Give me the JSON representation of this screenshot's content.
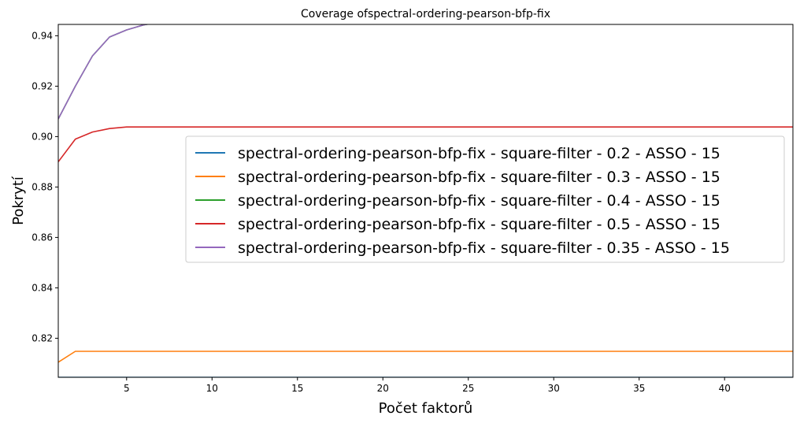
{
  "chart_data": {
    "type": "line",
    "title": "Coverage ofspectral-ordering-pearson-bfp-fix",
    "xlabel": "Počet faktorů",
    "ylabel": "Pokrytí",
    "xlim": [
      1,
      44
    ],
    "ylim": [
      0.8045,
      0.9445
    ],
    "xticks": [
      5,
      10,
      15,
      20,
      25,
      30,
      35,
      40
    ],
    "yticks": [
      0.82,
      0.84,
      0.86,
      0.88,
      0.9,
      0.92,
      0.94
    ],
    "ytick_labels": [
      "0.82",
      "0.84",
      "0.86",
      "0.88",
      "0.90",
      "0.92",
      "0.94"
    ],
    "grid": false,
    "legend_position": "center-right",
    "x": [
      1,
      2,
      3,
      4,
      5,
      6,
      7,
      8,
      9,
      10,
      11,
      12,
      13,
      14,
      15,
      16,
      17,
      18,
      19,
      20,
      21,
      22,
      23,
      24,
      25,
      26,
      27,
      28,
      29,
      30,
      31,
      32,
      33,
      34,
      35,
      36,
      37,
      38,
      39,
      40,
      41,
      42,
      43,
      44
    ],
    "series": [
      {
        "name": "spectral-ordering-pearson-bfp-fix - square-filter - 0.2 - ASSO - 15",
        "color": "#1f77b4",
        "values": [
          0.8045,
          0.8045,
          0.8045,
          0.8045,
          0.8045,
          0.8045,
          0.8045,
          0.8045,
          0.8045,
          0.8045,
          0.8045,
          0.8045,
          0.8045,
          0.8045,
          0.8045,
          0.8045,
          0.8045,
          0.8045,
          0.8045,
          0.8045,
          0.8045,
          0.8045,
          0.8045,
          0.8045,
          0.8045,
          0.8045,
          0.8045,
          0.8045,
          0.8045,
          0.8045,
          0.8045,
          0.8045,
          0.8045,
          0.8045,
          0.8045,
          0.8045,
          0.8045,
          0.8045,
          0.8045,
          0.8045,
          0.8045,
          0.8045,
          0.8045,
          0.8045
        ]
      },
      {
        "name": "spectral-ordering-pearson-bfp-fix - square-filter - 0.3 - ASSO - 15",
        "color": "#ff7f0e",
        "values": [
          0.8105,
          0.8148,
          0.8148,
          0.8148,
          0.8148,
          0.8148,
          0.8148,
          0.8148,
          0.8148,
          0.8148,
          0.8148,
          0.8148,
          0.8148,
          0.8148,
          0.8148,
          0.8148,
          0.8148,
          0.8148,
          0.8148,
          0.8148,
          0.8148,
          0.8148,
          0.8148,
          0.8148,
          0.8148,
          0.8148,
          0.8148,
          0.8148,
          0.8148,
          0.8148,
          0.8148,
          0.8148,
          0.8148,
          0.8148,
          0.8148,
          0.8148,
          0.8148,
          0.8148,
          0.8148,
          0.8148,
          0.8148,
          0.8148,
          0.8148,
          0.8148
        ]
      },
      {
        "name": "spectral-ordering-pearson-bfp-fix - square-filter - 0.4 - ASSO - 15",
        "color": "#2ca02c",
        "values": [
          0.907,
          0.92,
          0.932,
          0.9395,
          0.9423,
          0.9443,
          0.9455,
          0.9455,
          0.9455,
          0.9455,
          0.9455,
          0.9455,
          0.9455,
          0.9455,
          0.9455,
          0.9455,
          0.9455,
          0.9455,
          0.9455,
          0.9455,
          0.9455,
          0.9455,
          0.9455,
          0.9455,
          0.9455,
          0.9455,
          0.9455,
          0.9455,
          0.9455,
          0.9455,
          0.9455,
          0.9455,
          0.9455,
          0.9455,
          0.9455,
          0.9455,
          0.9455,
          0.9455,
          0.9455,
          0.9455,
          0.9455,
          0.9455,
          0.9455,
          0.9455
        ]
      },
      {
        "name": "spectral-ordering-pearson-bfp-fix - square-filter - 0.5 - ASSO - 15",
        "color": "#d62728",
        "values": [
          0.89,
          0.899,
          0.9018,
          0.9032,
          0.9038,
          0.9038,
          0.9038,
          0.9038,
          0.9038,
          0.9038,
          0.9038,
          0.9038,
          0.9038,
          0.9038,
          0.9038,
          0.9038,
          0.9038,
          0.9038,
          0.9038,
          0.9038,
          0.9038,
          0.9038,
          0.9038,
          0.9038,
          0.9038,
          0.9038,
          0.9038,
          0.9038,
          0.9038,
          0.9038,
          0.9038,
          0.9038,
          0.9038,
          0.9038,
          0.9038,
          0.9038,
          0.9038,
          0.9038,
          0.9038,
          0.9038,
          0.9038,
          0.9038,
          0.9038,
          0.9038
        ]
      },
      {
        "name": "spectral-ordering-pearson-bfp-fix - square-filter - 0.35 - ASSO - 15",
        "color": "#9467bd",
        "values": [
          0.907,
          0.92,
          0.932,
          0.9395,
          0.9423,
          0.9443,
          0.9455,
          0.9455,
          0.9455,
          0.9455,
          0.9455,
          0.9455,
          0.9455,
          0.9455,
          0.9455,
          0.9455,
          0.9455,
          0.9455,
          0.9455,
          0.9455,
          0.9455,
          0.9455,
          0.9455,
          0.9455,
          0.9455,
          0.9455,
          0.9455,
          0.9455,
          0.9455,
          0.9455,
          0.9455,
          0.9455,
          0.9455,
          0.9455,
          0.9455,
          0.9455,
          0.9455,
          0.9455,
          0.9455,
          0.9455,
          0.9455,
          0.9455,
          0.9455,
          0.9455
        ]
      }
    ]
  }
}
